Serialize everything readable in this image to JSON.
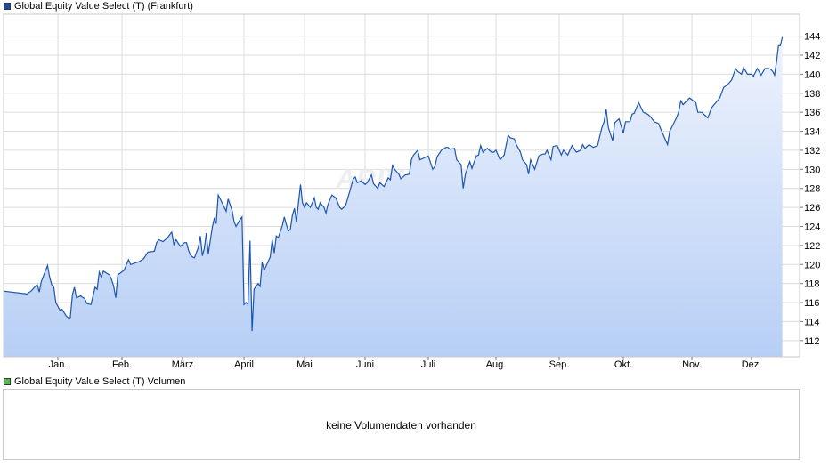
{
  "colors": {
    "series_line": "#1c55b0",
    "area_top": "#eef3fd",
    "area_bottom": "#b7cff5",
    "grid": "#dcdcdc",
    "frame": "#c8c8c8",
    "price_swatch": "#1c4aa0",
    "volume_swatch": "#4fbf4f"
  },
  "legend": {
    "price_label": "Global Equity Value Select (T) (Frankfurt)",
    "volume_label": "Global Equity Value Select (T) Volumen"
  },
  "volume_panel": {
    "message": "keine Volumendaten vorhanden"
  },
  "watermark": "ARIVA.DE",
  "chart_data": {
    "type": "area",
    "title": "",
    "xlabel": "",
    "ylabel": "",
    "y_axis_side": "right",
    "ylim": [
      110.3,
      146.3
    ],
    "y_ticks": [
      112,
      114,
      116,
      118,
      120,
      122,
      124,
      126,
      128,
      130,
      132,
      134,
      136,
      138,
      140,
      142,
      144
    ],
    "x_ticks": [
      "Jan.",
      "Feb.",
      "März",
      "April",
      "Mai",
      "Juni",
      "Juli",
      "Aug.",
      "Sep.",
      "Okt.",
      "Nov.",
      "Dez."
    ],
    "grid": true,
    "legend_position": "top-left",
    "series": [
      {
        "name": "Global Equity Value Select (T) (Frankfurt)",
        "points": [
          [
            "Dez. 15",
            117.2
          ],
          [
            "Dez. 17",
            116.9
          ],
          [
            "Dez. 19",
            117.2
          ],
          [
            "Dez. 22",
            117.9
          ],
          [
            "Dez. 23",
            117.1
          ],
          [
            "Dez. 24",
            118.2
          ],
          [
            "Dez. 27",
            119.9
          ],
          [
            "Dez. 28",
            118.7
          ],
          [
            "Dez. 29",
            117.9
          ],
          [
            "Dez. 30",
            117.6
          ],
          [
            "Dez. 31",
            116.0
          ],
          [
            "Jan. 2",
            115.2
          ],
          [
            "Jan. 3",
            115.3
          ],
          [
            "Jan. 5",
            114.6
          ],
          [
            "Jan. 6",
            114.4
          ],
          [
            "Jan. 7",
            114.4
          ],
          [
            "Jan. 8",
            116.8
          ],
          [
            "Jan. 9",
            117.6
          ],
          [
            "Jan. 10",
            116.5
          ],
          [
            "Jan. 12",
            116.7
          ],
          [
            "Jan. 14",
            116.4
          ],
          [
            "Jan. 15",
            115.9
          ],
          [
            "Jan. 17",
            115.8
          ],
          [
            "Jan. 19",
            117.6
          ],
          [
            "Jan. 20",
            117.4
          ],
          [
            "Jan. 21",
            119.2
          ],
          [
            "Jan. 22",
            118.7
          ],
          [
            "Jan. 23",
            119.3
          ],
          [
            "Jan. 26",
            118.9
          ],
          [
            "Jan. 27",
            118.4
          ],
          [
            "Jan. 28",
            117.7
          ],
          [
            "Jan. 29",
            116.5
          ],
          [
            "Jan. 30",
            118.9
          ],
          [
            "Feb. 2",
            119.4
          ],
          [
            "Feb. 4",
            120.5
          ],
          [
            "Feb. 5",
            120.0
          ],
          [
            "Feb. 9",
            120.3
          ],
          [
            "Feb. 11",
            120.6
          ],
          [
            "Feb. 13",
            121.3
          ],
          [
            "Feb. 16",
            121.4
          ],
          [
            "Feb. 17",
            122.3
          ],
          [
            "Feb. 18",
            122.6
          ],
          [
            "Feb. 20",
            122.4
          ],
          [
            "Feb. 22",
            122.8
          ],
          [
            "Feb. 24",
            123.4
          ],
          [
            "Feb. 25",
            122.1
          ],
          [
            "Feb. 26",
            122.6
          ],
          [
            "Feb. 28",
            121.9
          ],
          [
            "März 2",
            122.3
          ],
          [
            "März 3",
            122.3
          ],
          [
            "März 4",
            121.5
          ],
          [
            "März 5",
            121.0
          ],
          [
            "März 6",
            120.8
          ],
          [
            "März 7",
            120.7
          ],
          [
            "März 9",
            121.8
          ],
          [
            "März 10",
            123.0
          ],
          [
            "März 11",
            120.9
          ],
          [
            "März 12",
            121.7
          ],
          [
            "März 13",
            123.3
          ],
          [
            "März 14",
            121.1
          ],
          [
            "März 16",
            123.9
          ],
          [
            "März 17",
            124.8
          ],
          [
            "März 18",
            124.3
          ],
          [
            "März 19",
            127.3
          ],
          [
            "März 20",
            126.9
          ],
          [
            "März 23",
            125.6
          ],
          [
            "März 24",
            126.9
          ],
          [
            "März 26",
            125.7
          ],
          [
            "März 27",
            124.5
          ],
          [
            "März 28",
            124.0
          ],
          [
            "März 30",
            124.7
          ],
          [
            "März 31",
            125.0
          ],
          [
            "April 1",
            115.8
          ],
          [
            "April 2",
            116.0
          ],
          [
            "April 3",
            115.8
          ],
          [
            "April 4",
            122.5
          ],
          [
            "April 5",
            113.0
          ],
          [
            "April 6",
            117.4
          ],
          [
            "April 8",
            118.0
          ],
          [
            "April 9",
            117.7
          ],
          [
            "April 10",
            120.2
          ],
          [
            "April 11",
            119.4
          ],
          [
            "April 14",
            120.8
          ],
          [
            "April 15",
            122.6
          ],
          [
            "April 16",
            121.2
          ],
          [
            "April 17",
            123.0
          ],
          [
            "April 18",
            122.8
          ],
          [
            "April 20",
            124.1
          ],
          [
            "April 21",
            125.0
          ],
          [
            "April 22",
            124.2
          ],
          [
            "April 23",
            123.5
          ],
          [
            "April 24",
            123.7
          ],
          [
            "April 25",
            125.2
          ],
          [
            "April 26",
            125.9
          ],
          [
            "April 27",
            124.5
          ],
          [
            "April 28",
            126.5
          ],
          [
            "April 29",
            128.4
          ],
          [
            "April 30",
            126.5
          ],
          [
            "Mai 1",
            126.0
          ],
          [
            "Mai 2",
            126.5
          ],
          [
            "Mai 4",
            126.0
          ],
          [
            "Mai 6",
            127.0
          ],
          [
            "Mai 7",
            126.0
          ],
          [
            "Mai 8",
            125.8
          ],
          [
            "Mai 9",
            126.5
          ],
          [
            "Mai 11",
            126.0
          ],
          [
            "Mai 12",
            125.4
          ],
          [
            "Mai 13",
            126.3
          ],
          [
            "Mai 15",
            127.3
          ],
          [
            "Mai 17",
            127.0
          ],
          [
            "Mai 19",
            126.0
          ],
          [
            "Mai 20",
            125.8
          ],
          [
            "Mai 22",
            126.2
          ],
          [
            "Mai 24",
            127.6
          ],
          [
            "Mai 26",
            129.0
          ],
          [
            "Mai 27",
            129.2
          ],
          [
            "Mai 28",
            128.6
          ],
          [
            "Mai 30",
            128.8
          ],
          [
            "Juni 1",
            128.4
          ],
          [
            "Juni 2",
            128.6
          ],
          [
            "Juni 4",
            129.4
          ],
          [
            "Juni 5",
            128.5
          ],
          [
            "Juni 7",
            128.0
          ],
          [
            "Juni 8",
            128.6
          ],
          [
            "Juni 10",
            128.2
          ],
          [
            "Juni 12",
            129.1
          ],
          [
            "Juni 13",
            128.9
          ],
          [
            "Juni 14",
            130.4
          ],
          [
            "Juni 15",
            130.0
          ],
          [
            "Juni 17",
            129.5
          ],
          [
            "Juni 18",
            129.0
          ],
          [
            "Juni 20",
            129.4
          ],
          [
            "Juni 22",
            129.5
          ],
          [
            "Juni 23",
            131.0
          ],
          [
            "Juni 24",
            131.5
          ],
          [
            "Juni 26",
            132.0
          ],
          [
            "Juni 27",
            131.0
          ],
          [
            "Juni 29",
            131.2
          ],
          [
            "Juli 1",
            131.4
          ],
          [
            "Juli 3",
            130.0
          ],
          [
            "Juli 4",
            130.3
          ],
          [
            "Juli 5",
            131.3
          ],
          [
            "Juli 7",
            132.0
          ],
          [
            "Juli 9",
            132.3
          ],
          [
            "Juli 10",
            132.3
          ],
          [
            "Juli 11",
            132.1
          ],
          [
            "Juli 13",
            132.2
          ],
          [
            "Juli 14",
            131.0
          ],
          [
            "Juli 16",
            130.5
          ],
          [
            "Juli 17",
            128.0
          ],
          [
            "Juli 18",
            129.5
          ],
          [
            "Juli 20",
            130.8
          ],
          [
            "Juli 21",
            130.1
          ],
          [
            "Juli 23",
            131.4
          ],
          [
            "Juli 24",
            131.5
          ],
          [
            "Juli 25",
            132.5
          ],
          [
            "Juli 26",
            131.8
          ],
          [
            "Juli 28",
            132.2
          ],
          [
            "Juli 30",
            131.8
          ],
          [
            "Juli 31",
            131.8
          ],
          [
            "Aug. 1",
            132.0
          ],
          [
            "Aug. 3",
            131.0
          ],
          [
            "Aug. 5",
            131.5
          ],
          [
            "Aug. 7",
            133.6
          ],
          [
            "Aug. 8",
            133.3
          ],
          [
            "Aug. 10",
            133.2
          ],
          [
            "Aug. 11",
            132.6
          ],
          [
            "Aug. 13",
            131.8
          ],
          [
            "Aug. 14",
            131.0
          ],
          [
            "Aug. 16",
            130.5
          ],
          [
            "Aug. 17",
            129.5
          ],
          [
            "Aug. 18",
            131.0
          ],
          [
            "Aug. 20",
            130.0
          ],
          [
            "Aug. 22",
            131.4
          ],
          [
            "Aug. 24",
            131.6
          ],
          [
            "Aug. 25",
            131.6
          ],
          [
            "Aug. 26",
            132.0
          ],
          [
            "Aug. 28",
            131.0
          ],
          [
            "Aug. 29",
            132.4
          ],
          [
            "Aug. 31",
            132.5
          ],
          [
            "Sep. 2",
            131.5
          ],
          [
            "Sep. 3",
            132.0
          ],
          [
            "Sep. 5",
            131.5
          ],
          [
            "Sep. 6",
            132.0
          ],
          [
            "Sep. 7",
            132.5
          ],
          [
            "Sep. 9",
            131.8
          ],
          [
            "Sep. 11",
            132.0
          ],
          [
            "Sep. 12",
            132.6
          ],
          [
            "Sep. 13",
            132.2
          ],
          [
            "Sep. 15",
            132.6
          ],
          [
            "Sep. 17",
            132.3
          ],
          [
            "Sep. 19",
            132.5
          ],
          [
            "Sep. 20",
            133.5
          ],
          [
            "Sep. 21",
            134.4
          ],
          [
            "Sep. 22",
            135.0
          ],
          [
            "Sep. 23",
            136.3
          ],
          [
            "Sep. 24",
            134.4
          ],
          [
            "Sep. 26",
            133.0
          ],
          [
            "Sep. 27",
            134.9
          ],
          [
            "Sep. 29",
            135.3
          ],
          [
            "Okt. 1",
            133.8
          ],
          [
            "Okt. 2",
            135.0
          ],
          [
            "Okt. 4",
            135.0
          ],
          [
            "Okt. 5",
            135.8
          ],
          [
            "Okt. 6",
            135.9
          ],
          [
            "Okt. 7",
            136.5
          ],
          [
            "Okt. 8",
            137.0
          ],
          [
            "Okt. 10",
            136.0
          ],
          [
            "Okt. 12",
            135.8
          ],
          [
            "Okt. 13",
            135.6
          ],
          [
            "Okt. 15",
            135.0
          ],
          [
            "Okt. 17",
            134.8
          ],
          [
            "Okt. 18",
            134.2
          ],
          [
            "Okt. 21",
            132.6
          ],
          [
            "Okt. 22",
            134.0
          ],
          [
            "Okt. 25",
            135.4
          ],
          [
            "Okt. 26",
            136.0
          ],
          [
            "Okt. 27",
            137.2
          ],
          [
            "Okt. 28",
            136.8
          ],
          [
            "Okt. 31",
            137.5
          ],
          [
            "Nov. 3",
            137.0
          ],
          [
            "Nov. 4",
            136.0
          ],
          [
            "Nov. 6",
            136.0
          ],
          [
            "Nov. 9",
            135.4
          ],
          [
            "Nov. 11",
            136.5
          ],
          [
            "Nov. 13",
            137.0
          ],
          [
            "Nov. 15",
            137.5
          ],
          [
            "Nov. 17",
            138.6
          ],
          [
            "Nov. 19",
            138.9
          ],
          [
            "Nov. 21",
            139.4
          ],
          [
            "Nov. 23",
            140.6
          ],
          [
            "Nov. 24",
            140.3
          ],
          [
            "Nov. 26",
            140.0
          ],
          [
            "Nov. 27",
            140.7
          ],
          [
            "Nov. 29",
            140.0
          ],
          [
            "Dez. 1",
            140.0
          ],
          [
            "Dez. 2",
            139.8
          ],
          [
            "Dez. 4",
            140.6
          ],
          [
            "Dez. 6",
            139.9
          ],
          [
            "Dez. 8",
            140.6
          ],
          [
            "Dez. 10",
            140.6
          ],
          [
            "Dez. 11",
            140.5
          ],
          [
            "Dez. 12",
            140.3
          ],
          [
            "Dez. 13",
            139.9
          ],
          [
            "Dez. 14",
            141.3
          ],
          [
            "Dez. 15",
            143.0
          ],
          [
            "Dez. 16",
            143.0
          ],
          [
            "Dez. 17",
            143.9
          ]
        ]
      }
    ]
  }
}
